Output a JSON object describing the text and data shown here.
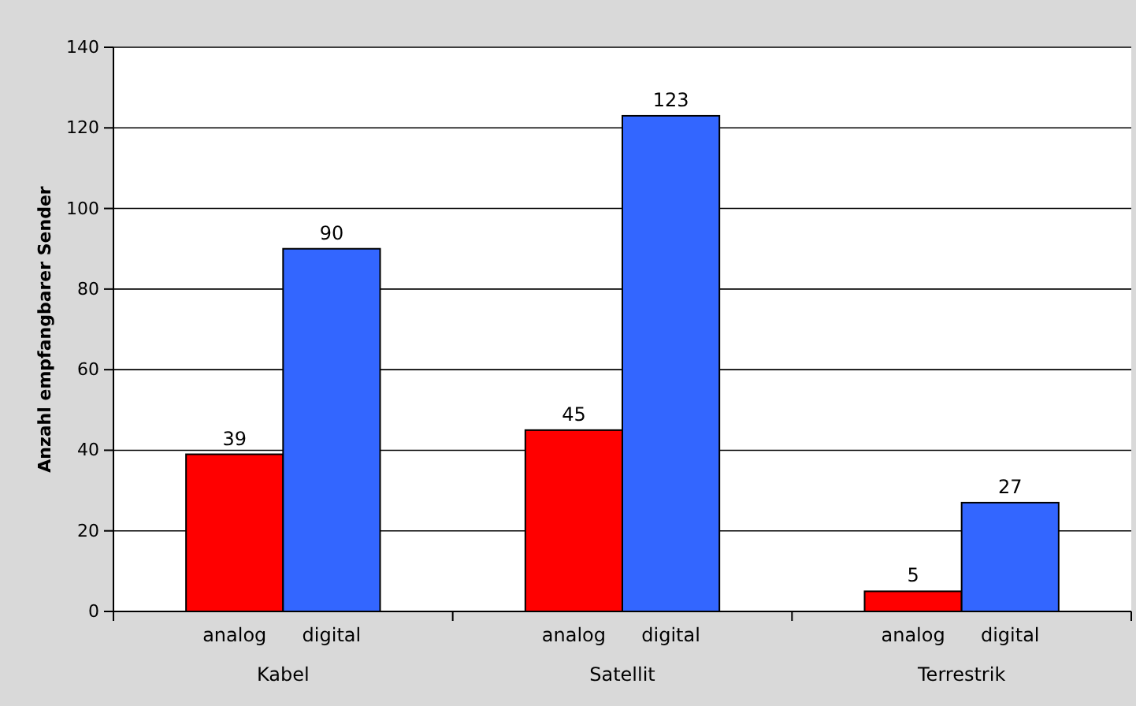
{
  "chart_data": {
    "type": "bar",
    "ylabel": "Anzahl empfangbarer Sender",
    "categories": [
      "Kabel",
      "Satellit",
      "Terrestrik"
    ],
    "series": [
      {
        "name": "analog",
        "color": "#ff0000",
        "values": [
          39,
          45,
          5
        ]
      },
      {
        "name": "digital",
        "color": "#3366ff",
        "values": [
          90,
          123,
          27
        ]
      }
    ],
    "ylim": [
      0,
      140
    ],
    "yticks": [
      0,
      20,
      40,
      60,
      80,
      100,
      120,
      140
    ],
    "grid": "y",
    "data_labels": true
  }
}
